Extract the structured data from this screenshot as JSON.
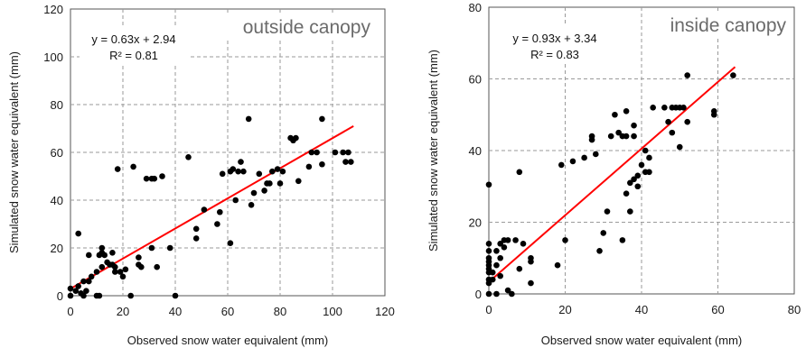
{
  "chart_data": [
    {
      "type": "scatter",
      "title": "outside canopy",
      "xlabel": "Observed snow water equivalent (mm)",
      "ylabel": "Simulated snow water equivalent (mm)",
      "xlim": [
        0,
        120
      ],
      "ylim": [
        0,
        120
      ],
      "xticks": [
        0,
        20,
        40,
        60,
        80,
        100,
        120
      ],
      "yticks": [
        0,
        20,
        40,
        60,
        80,
        100,
        120
      ],
      "grid": true,
      "equation": "y = 0.63x + 2.94",
      "r2": "R² = 0.81",
      "trendline": {
        "slope": 0.63,
        "intercept": 2.94,
        "x_range": [
          0,
          108
        ]
      },
      "points": [
        [
          0,
          3
        ],
        [
          0,
          0
        ],
        [
          2,
          2
        ],
        [
          3,
          26
        ],
        [
          3,
          4
        ],
        [
          4,
          1
        ],
        [
          5,
          0
        ],
        [
          5,
          6
        ],
        [
          6,
          2
        ],
        [
          7,
          17
        ],
        [
          7,
          6
        ],
        [
          8,
          8
        ],
        [
          10,
          0
        ],
        [
          11,
          0
        ],
        [
          10,
          10
        ],
        [
          11,
          17
        ],
        [
          12,
          12
        ],
        [
          12,
          20
        ],
        [
          12,
          18
        ],
        [
          13,
          17
        ],
        [
          14,
          14
        ],
        [
          15,
          13
        ],
        [
          16,
          18
        ],
        [
          16,
          13
        ],
        [
          17,
          10
        ],
        [
          17,
          12
        ],
        [
          18,
          53
        ],
        [
          19,
          10
        ],
        [
          20,
          8
        ],
        [
          21,
          11
        ],
        [
          23,
          0
        ],
        [
          24,
          54
        ],
        [
          26,
          13
        ],
        [
          26,
          16
        ],
        [
          27,
          12
        ],
        [
          29,
          49
        ],
        [
          31,
          49
        ],
        [
          31,
          20
        ],
        [
          32,
          49
        ],
        [
          33,
          12
        ],
        [
          35,
          50
        ],
        [
          38,
          20
        ],
        [
          40,
          0
        ],
        [
          45,
          58
        ],
        [
          48,
          24
        ],
        [
          48,
          28
        ],
        [
          51,
          36
        ],
        [
          56,
          30
        ],
        [
          57,
          35
        ],
        [
          58,
          51
        ],
        [
          61,
          22
        ],
        [
          61,
          52
        ],
        [
          62,
          53
        ],
        [
          63,
          40
        ],
        [
          64,
          52
        ],
        [
          65,
          56
        ],
        [
          66,
          52
        ],
        [
          68,
          74
        ],
        [
          69,
          38
        ],
        [
          70,
          43
        ],
        [
          72,
          51
        ],
        [
          74,
          44
        ],
        [
          75,
          47
        ],
        [
          76,
          47
        ],
        [
          77,
          52
        ],
        [
          79,
          53
        ],
        [
          80,
          47
        ],
        [
          81,
          52
        ],
        [
          84,
          66
        ],
        [
          85,
          65
        ],
        [
          86,
          66
        ],
        [
          87,
          48
        ],
        [
          91,
          54
        ],
        [
          92,
          60
        ],
        [
          94,
          60
        ],
        [
          96,
          74
        ],
        [
          96,
          55
        ],
        [
          101,
          60
        ],
        [
          104,
          60
        ],
        [
          105,
          56
        ],
        [
          106,
          60
        ],
        [
          107,
          56
        ]
      ]
    },
    {
      "type": "scatter",
      "title": "inside canopy",
      "xlabel": "Observed snow water equivalent (mm)",
      "ylabel": "Simulated snow water equivalent (mm)",
      "xlim": [
        0,
        80
      ],
      "ylim": [
        0,
        80
      ],
      "xticks": [
        0,
        20,
        40,
        60,
        80
      ],
      "yticks": [
        0,
        20,
        40,
        60,
        80
      ],
      "grid": true,
      "equation": "y = 0.93x + 3.34",
      "r2": "R² = 0.83",
      "trendline": {
        "slope": 0.93,
        "intercept": 3.34,
        "x_range": [
          0,
          64.5
        ]
      },
      "points": [
        [
          0,
          0
        ],
        [
          0,
          3
        ],
        [
          0,
          4
        ],
        [
          0,
          6
        ],
        [
          0,
          7
        ],
        [
          0,
          8
        ],
        [
          0,
          9
        ],
        [
          0,
          10
        ],
        [
          0,
          12
        ],
        [
          0,
          14
        ],
        [
          0,
          30.5
        ],
        [
          1,
          4
        ],
        [
          1,
          6
        ],
        [
          2,
          0
        ],
        [
          2,
          8
        ],
        [
          2,
          12
        ],
        [
          3,
          5
        ],
        [
          3,
          10
        ],
        [
          3,
          14
        ],
        [
          4,
          15
        ],
        [
          4,
          13
        ],
        [
          5,
          1
        ],
        [
          5,
          15
        ],
        [
          6,
          0
        ],
        [
          7,
          15
        ],
        [
          8,
          34
        ],
        [
          8,
          7
        ],
        [
          9,
          14
        ],
        [
          11,
          10
        ],
        [
          11,
          9
        ],
        [
          11,
          3
        ],
        [
          18,
          8
        ],
        [
          19,
          36
        ],
        [
          20,
          15
        ],
        [
          22,
          37
        ],
        [
          25,
          38
        ],
        [
          27,
          44
        ],
        [
          27,
          43
        ],
        [
          28,
          39
        ],
        [
          29,
          12
        ],
        [
          30,
          17
        ],
        [
          31,
          23
        ],
        [
          32,
          44
        ],
        [
          33,
          50
        ],
        [
          34,
          45
        ],
        [
          35,
          44
        ],
        [
          35,
          15
        ],
        [
          36,
          51
        ],
        [
          36,
          44
        ],
        [
          36,
          28
        ],
        [
          37,
          23
        ],
        [
          37,
          31
        ],
        [
          38,
          32
        ],
        [
          38,
          47
        ],
        [
          38,
          44
        ],
        [
          39,
          33
        ],
        [
          39,
          30
        ],
        [
          40,
          36
        ],
        [
          41,
          40
        ],
        [
          41,
          34
        ],
        [
          42,
          34
        ],
        [
          42,
          38
        ],
        [
          43,
          52
        ],
        [
          46,
          52
        ],
        [
          47,
          48
        ],
        [
          48,
          52
        ],
        [
          48,
          45
        ],
        [
          49,
          52
        ],
        [
          50,
          52
        ],
        [
          50,
          41
        ],
        [
          51,
          52
        ],
        [
          52,
          61
        ],
        [
          52,
          48
        ],
        [
          59,
          50
        ],
        [
          59,
          51
        ],
        [
          64,
          61
        ]
      ]
    }
  ]
}
